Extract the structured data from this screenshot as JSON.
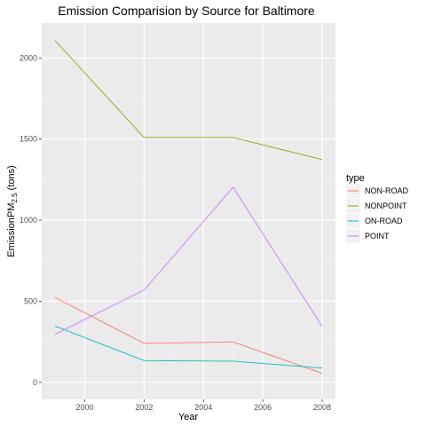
{
  "chart_data": {
    "type": "line",
    "title": "Emission Comparision by Source for Baltimore",
    "xlabel": "Year",
    "ylabel_main": "EmissionPM",
    "ylabel_sub": "2.5",
    "ylabel_tail": " (tons)",
    "x": [
      1999,
      2002,
      2005,
      2008
    ],
    "xlim": [
      1998.55,
      2008.45
    ],
    "ylim": [
      -105,
      2215
    ],
    "xticks": [
      2000,
      2002,
      2004,
      2006,
      2008
    ],
    "xtick_labels": [
      "2000",
      "2002",
      "2004",
      "2006",
      "2008"
    ],
    "yticks": [
      0,
      500,
      1000,
      1500,
      2000
    ],
    "ytick_labels": [
      "0",
      "500",
      "1000",
      "1500",
      "2000"
    ],
    "grid": true,
    "legend_title": "type",
    "legend_position": "right",
    "series": [
      {
        "name": "NON-ROAD",
        "color": "#F8766D",
        "values": [
          522.9,
          240.8,
          248.9,
          55.8
        ]
      },
      {
        "name": "NONPOINT",
        "color": "#7CAE00",
        "values": [
          2107.6,
          1509.5,
          1509.5,
          1373.2
        ]
      },
      {
        "name": "ON-ROAD",
        "color": "#00BFC4",
        "values": [
          346.8,
          134.3,
          130.4,
          88.3
        ]
      },
      {
        "name": "POINT",
        "color": "#C77CFF",
        "values": [
          296.8,
          569.3,
          1202.5,
          344.98
        ]
      }
    ]
  }
}
